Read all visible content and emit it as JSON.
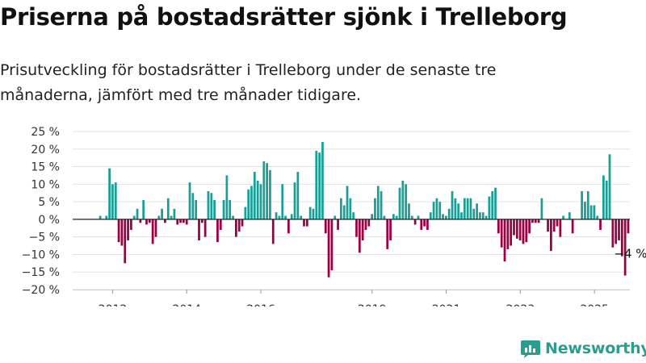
{
  "title": "Priserna på bostadsrätter sjönk i Trelleborg",
  "subtitle": "Prisutveckling för bostadsrätter i Trelleborg under de senaste tre månaderna, jämfört med tre månader tidigare.",
  "brand": "Newsworthy",
  "colors": {
    "positive": "#1a9e96",
    "negative": "#9b0045",
    "brand": "#2a9d8f"
  },
  "chart_data": {
    "type": "bar",
    "unit": "%",
    "ylim": [
      -20,
      25
    ],
    "yticks": [
      25,
      20,
      15,
      10,
      5,
      0,
      -5,
      -10,
      -15,
      -20
    ],
    "ytick_labels": [
      "25 %",
      "20 %",
      "15 %",
      "10 %",
      "5 %",
      "0 %",
      "−5 %",
      "−10 %",
      "−15 %",
      "−20 %"
    ],
    "xticks": [
      {
        "label": "2012",
        "x": 2012
      },
      {
        "label": "2014",
        "x": 2014
      },
      {
        "label": "2016",
        "x": 2016
      },
      {
        "label": "2019",
        "x": 2019
      },
      {
        "label": "2021",
        "x": 2021
      },
      {
        "label": "2023",
        "x": 2023
      },
      {
        "label": "2025",
        "x": 2025
      }
    ],
    "x_start": 2011.5,
    "step": 0.0833,
    "values": [
      0,
      0,
      1,
      0,
      1,
      14.5,
      10,
      10.5,
      -6.5,
      -7.5,
      -12.5,
      -6,
      -3,
      1,
      3,
      -1,
      5.5,
      -1.5,
      -1,
      -7,
      -5,
      1,
      3,
      -1,
      6,
      1,
      3,
      -1.5,
      -1,
      -1,
      -1.5,
      10.5,
      7.5,
      5.5,
      -6,
      -1,
      -5,
      8,
      7.5,
      5.5,
      -6.5,
      -3,
      5.5,
      12.5,
      5.5,
      1,
      -5,
      -3.5,
      -2,
      3.5,
      8.5,
      9.5,
      13.5,
      11,
      10,
      16.5,
      16,
      14,
      -7,
      2,
      1,
      10,
      1,
      -4,
      1.5,
      10.5,
      13.5,
      1,
      -2,
      -2,
      3.5,
      3,
      19.5,
      19,
      22,
      -4,
      -16.5,
      -14.5,
      1,
      -3,
      6,
      4,
      9.5,
      6,
      2,
      -5,
      -9.5,
      -6,
      -3,
      -2,
      1.5,
      6,
      9.5,
      8,
      1,
      -8.5,
      -6,
      1.5,
      1,
      9,
      11,
      10,
      4.5,
      1,
      -1.5,
      1,
      -3,
      -2,
      -3,
      2,
      5,
      6,
      5,
      1.5,
      1,
      3,
      8,
      6,
      4.5,
      2,
      6,
      6,
      6,
      3,
      4.5,
      2,
      2,
      1,
      6.5,
      8,
      9,
      -4,
      -8,
      -12,
      -8.5,
      -7.5,
      -4.5,
      -5.5,
      -6,
      -7,
      -6.5,
      -4,
      -1,
      -1,
      -1,
      6,
      0,
      -3.5,
      -9,
      -3.5,
      -2,
      -5,
      1,
      0,
      2,
      -4,
      0,
      0,
      8,
      5,
      8,
      4,
      4,
      1,
      -3,
      12.5,
      11,
      18.5,
      -8,
      -7,
      -6,
      -10.5,
      -16,
      -4
    ],
    "annotation": "−4 %"
  }
}
